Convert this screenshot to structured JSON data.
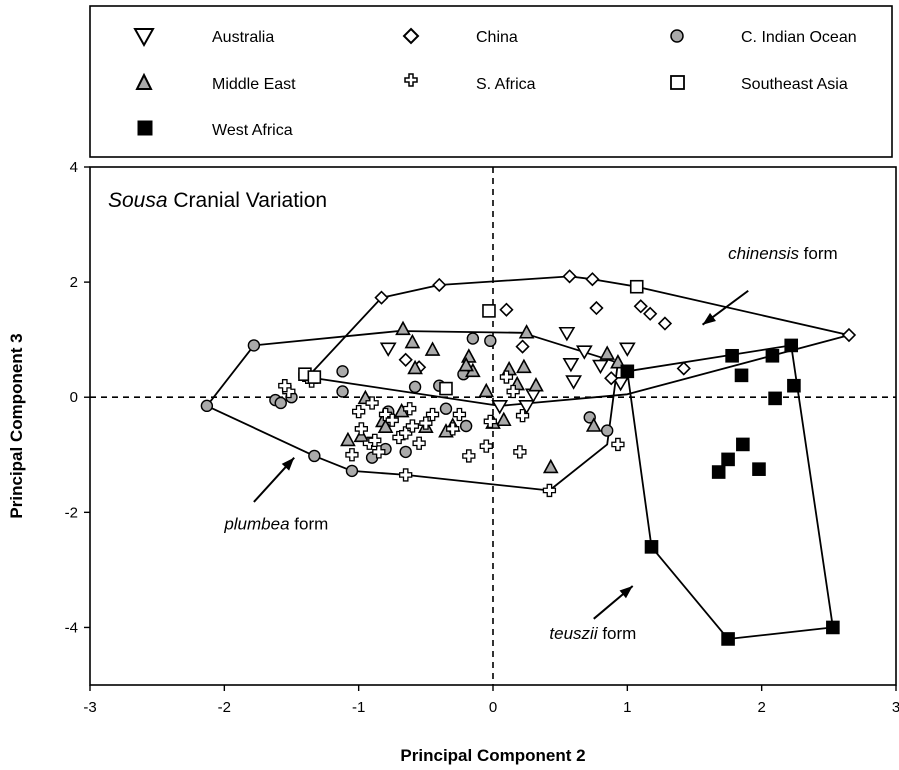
{
  "chart_data": {
    "type": "scatter",
    "title_italic": "Sousa",
    "title_rest": " Cranial Variation",
    "xlabel": "Principal  Component  2",
    "ylabel": "Principal  Component  3",
    "xlim": [
      -3,
      3
    ],
    "ylim": [
      -5,
      4
    ],
    "xticks": [
      -3,
      -2,
      -1,
      0,
      1,
      2,
      3
    ],
    "yticks": [
      -4,
      -2,
      0,
      2,
      4
    ],
    "grid": false,
    "legend_position": "top",
    "series": [
      {
        "name": "Australia",
        "marker": "triangle-down",
        "color": "#ffffff",
        "x": [
          -0.78,
          0.55,
          0.68,
          1.0,
          0.58,
          0.8,
          0.6,
          0.3,
          0.05,
          0.95,
          0.25
        ],
        "y": [
          0.85,
          1.12,
          0.8,
          0.85,
          0.58,
          0.55,
          0.28,
          0.05,
          -0.15,
          0.25,
          -0.15
        ]
      },
      {
        "name": "China",
        "marker": "diamond",
        "color": "#ffffff",
        "x": [
          -0.83,
          -0.4,
          0.1,
          0.57,
          0.74,
          0.77,
          1.1,
          1.17,
          1.28,
          -0.65,
          -0.55,
          0.22,
          0.88,
          1.42,
          2.65
        ],
        "y": [
          1.73,
          1.95,
          1.52,
          2.1,
          2.05,
          1.55,
          1.58,
          1.45,
          1.28,
          0.65,
          0.52,
          0.88,
          0.33,
          0.5,
          1.08
        ]
      },
      {
        "name": "C. Indian Ocean",
        "marker": "circle",
        "color": "#aaaaaa",
        "x": [
          -1.78,
          -2.13,
          -1.62,
          -1.5,
          -1.33,
          -1.12,
          -1.12,
          -0.58,
          -0.4,
          -0.78,
          -0.22,
          -0.2,
          -0.02,
          -0.8,
          -0.9,
          -0.65,
          -1.05,
          -0.35,
          0.72,
          0.85,
          -1.58,
          -0.15
        ],
        "y": [
          0.9,
          -0.15,
          -0.05,
          0.0,
          -1.02,
          0.45,
          0.1,
          0.18,
          0.2,
          -0.25,
          0.4,
          -0.5,
          0.98,
          -0.9,
          -1.05,
          -0.95,
          -1.28,
          -0.2,
          -0.35,
          -0.58,
          -0.1,
          1.02
        ]
      },
      {
        "name": "Middle East",
        "marker": "triangle-up",
        "color": "#aaaaaa",
        "x": [
          -0.67,
          -0.45,
          -0.05,
          0.25,
          0.32,
          0.85,
          0.93,
          -0.18,
          0.08,
          -0.95,
          -0.82,
          -1.08,
          -0.98,
          -0.68,
          -0.3,
          -0.15,
          0.0,
          0.43,
          0.75,
          -0.6,
          -0.58,
          -0.5,
          -0.35,
          0.18,
          -0.8,
          0.12,
          -0.2,
          0.23
        ],
        "y": [
          1.18,
          0.82,
          0.1,
          1.12,
          0.2,
          0.75,
          0.6,
          0.7,
          -0.4,
          -0.02,
          -0.42,
          -0.75,
          -0.68,
          -0.25,
          -0.5,
          0.45,
          -0.45,
          -1.22,
          -0.5,
          0.95,
          0.5,
          -0.52,
          -0.6,
          0.22,
          -0.52,
          0.48,
          0.55,
          0.52
        ]
      },
      {
        "name": "S. Africa",
        "marker": "cross",
        "color": "#ffffff",
        "x": [
          -1.52,
          -1.55,
          -1.4,
          -1.35,
          -1.0,
          -0.98,
          -0.92,
          -0.85,
          -0.8,
          -0.75,
          -0.7,
          -0.65,
          -0.6,
          -0.55,
          -0.5,
          -0.45,
          -0.3,
          -0.25,
          -0.18,
          -0.05,
          -0.02,
          0.1,
          0.15,
          0.2,
          0.22,
          0.42,
          0.93,
          -0.65,
          -0.9,
          -1.05,
          -0.88,
          -0.62
        ],
        "y": [
          0.1,
          0.2,
          0.38,
          0.28,
          -0.25,
          -0.55,
          -0.8,
          -0.95,
          -0.3,
          -0.4,
          -0.7,
          -0.62,
          -0.5,
          -0.8,
          -0.45,
          -0.3,
          -0.55,
          -0.3,
          -1.02,
          -0.85,
          -0.42,
          0.35,
          0.1,
          -0.95,
          -0.32,
          -1.62,
          -0.82,
          -1.35,
          -0.1,
          -1.0,
          -0.75,
          -0.2
        ]
      },
      {
        "name": "Southeast Asia",
        "marker": "square",
        "color": "#ffffff",
        "x": [
          -1.4,
          -1.33,
          -0.35,
          -0.03,
          1.07
        ],
        "y": [
          0.4,
          0.35,
          0.15,
          1.5,
          1.92
        ]
      },
      {
        "name": "West Africa",
        "marker": "square",
        "color": "#000000",
        "x": [
          1.0,
          1.18,
          1.78,
          1.85,
          2.08,
          2.1,
          2.22,
          2.24,
          1.86,
          1.75,
          1.98,
          1.68,
          1.75,
          2.53
        ],
        "y": [
          0.45,
          -2.6,
          0.72,
          0.38,
          0.72,
          -0.02,
          0.9,
          0.2,
          -0.82,
          -1.08,
          -1.25,
          -1.3,
          -4.2,
          -4.0
        ]
      }
    ],
    "hulls": [
      {
        "name": "chinensis",
        "x": [
          -1.38,
          -0.83,
          -0.4,
          0.57,
          0.74,
          1.07,
          2.65,
          1.0,
          0.05,
          -1.38
        ],
        "y": [
          0.35,
          1.73,
          1.95,
          2.1,
          2.05,
          1.92,
          1.08,
          0.05,
          -0.15,
          0.35
        ]
      },
      {
        "name": "plumbea",
        "x": [
          -2.13,
          -1.78,
          -0.7,
          0.22,
          0.93,
          0.85,
          0.42,
          -0.65,
          -1.05,
          -1.33,
          -2.13
        ],
        "y": [
          -0.15,
          0.9,
          1.15,
          1.12,
          0.6,
          -0.82,
          -1.62,
          -1.35,
          -1.28,
          -1.02,
          -0.15
        ]
      },
      {
        "name": "teuszii",
        "x": [
          1.0,
          2.22,
          2.53,
          1.75,
          1.18,
          1.0
        ],
        "y": [
          0.45,
          0.9,
          -4.0,
          -4.2,
          -2.6,
          0.45
        ]
      }
    ],
    "annotations": [
      {
        "italic": "chinensis",
        "rest": " form",
        "x": 1.75,
        "y": 2.4,
        "ax": 1.9,
        "ay": 1.85,
        "bx": 1.56,
        "by": 1.26
      },
      {
        "italic": "plumbea",
        "rest": " form",
        "x": -2.0,
        "y": -2.3,
        "ax": -1.78,
        "ay": -1.82,
        "bx": -1.48,
        "by": -1.05
      },
      {
        "italic": "teuszii",
        "rest": " form",
        "x": 0.42,
        "y": -4.2,
        "ax": 0.75,
        "ay": -3.85,
        "bx": 1.04,
        "by": -3.28
      }
    ]
  },
  "legend": {
    "row1": [
      "Australia",
      "China",
      "C. Indian Ocean"
    ],
    "row2": [
      "Middle East",
      "S. Africa",
      "Southeast Asia"
    ],
    "row3": [
      "West Africa"
    ]
  }
}
